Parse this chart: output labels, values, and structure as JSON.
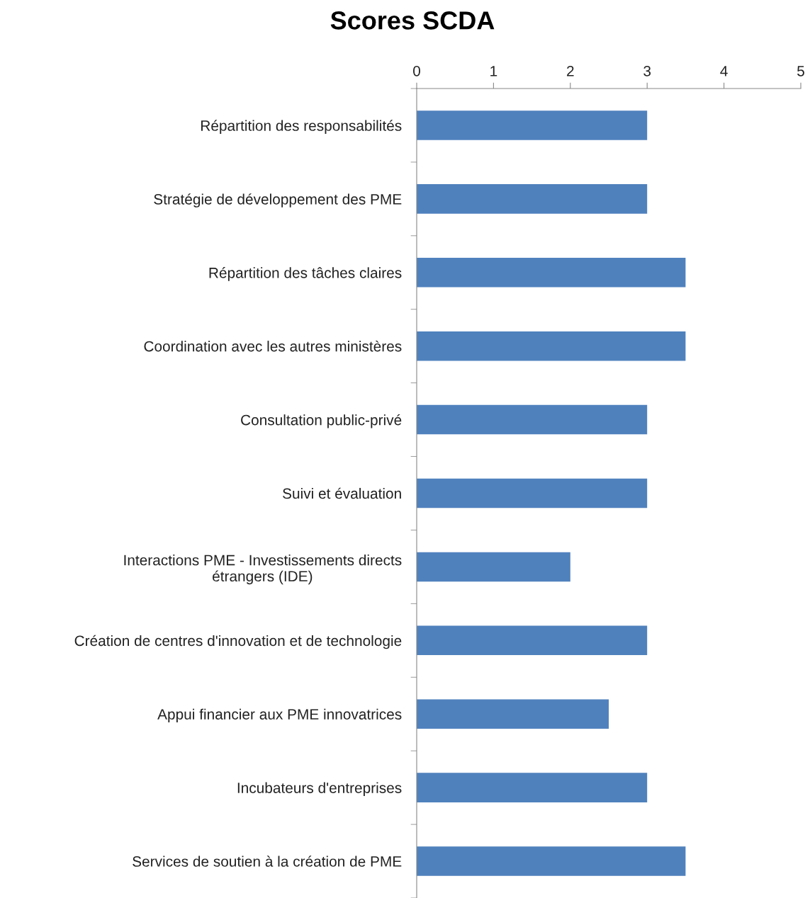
{
  "chart_data": {
    "type": "bar",
    "orientation": "horizontal",
    "title": "Scores SCDA",
    "categories": [
      "Répartition des responsabilités",
      "Stratégie de développement des PME",
      "Répartition des tâches claires",
      "Coordination avec les autres ministères",
      "Consultation public-privé",
      "Suivi et évaluation",
      "Interactions PME - Investissements directs\nétrangers (IDE)",
      "Création de centres d'innovation et de technologie",
      "Appui financier aux PME innovatrices",
      "Incubateurs d'entreprises",
      "Services de soutien à la création de PME"
    ],
    "values": [
      3,
      3,
      3.5,
      3.5,
      3,
      3,
      2,
      3,
      2.5,
      3,
      3.5
    ],
    "color": "#4f81bd",
    "xlim": [
      0,
      5
    ],
    "xticks": [
      0,
      1,
      2,
      3,
      4,
      5
    ],
    "grid": false
  }
}
